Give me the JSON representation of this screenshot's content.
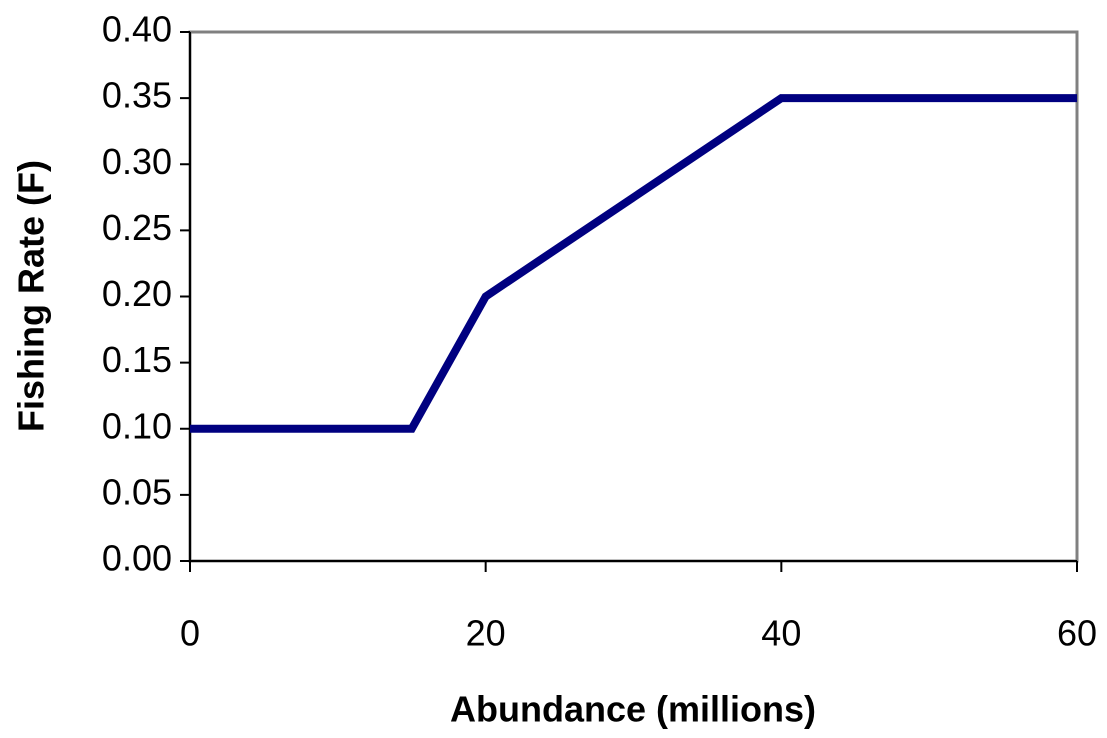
{
  "chart_data": {
    "type": "line",
    "xlabel": "Abundance (millions)",
    "ylabel": "Fishing Rate (F)",
    "x": [
      0,
      15,
      20,
      40,
      60
    ],
    "values": [
      0.1,
      0.1,
      0.2,
      0.35,
      0.35
    ],
    "color": "#000080",
    "xlim": [
      0,
      60
    ],
    "xticks": [
      0,
      20,
      40,
      60
    ],
    "ylim": [
      0,
      0.4
    ],
    "yticks": [
      {
        "value": 0,
        "label": "0.00"
      },
      {
        "value": 0.05,
        "label": "0.05"
      },
      {
        "value": 0.1,
        "label": "0.10"
      },
      {
        "value": 0.15,
        "label": "0.15"
      },
      {
        "value": 0.2,
        "label": "0.20"
      },
      {
        "value": 0.25,
        "label": "0.25"
      },
      {
        "value": 0.3,
        "label": "0.30"
      },
      {
        "value": 0.35,
        "label": "0.35"
      },
      {
        "value": 0.4,
        "label": "0.40"
      }
    ],
    "grid": false
  }
}
